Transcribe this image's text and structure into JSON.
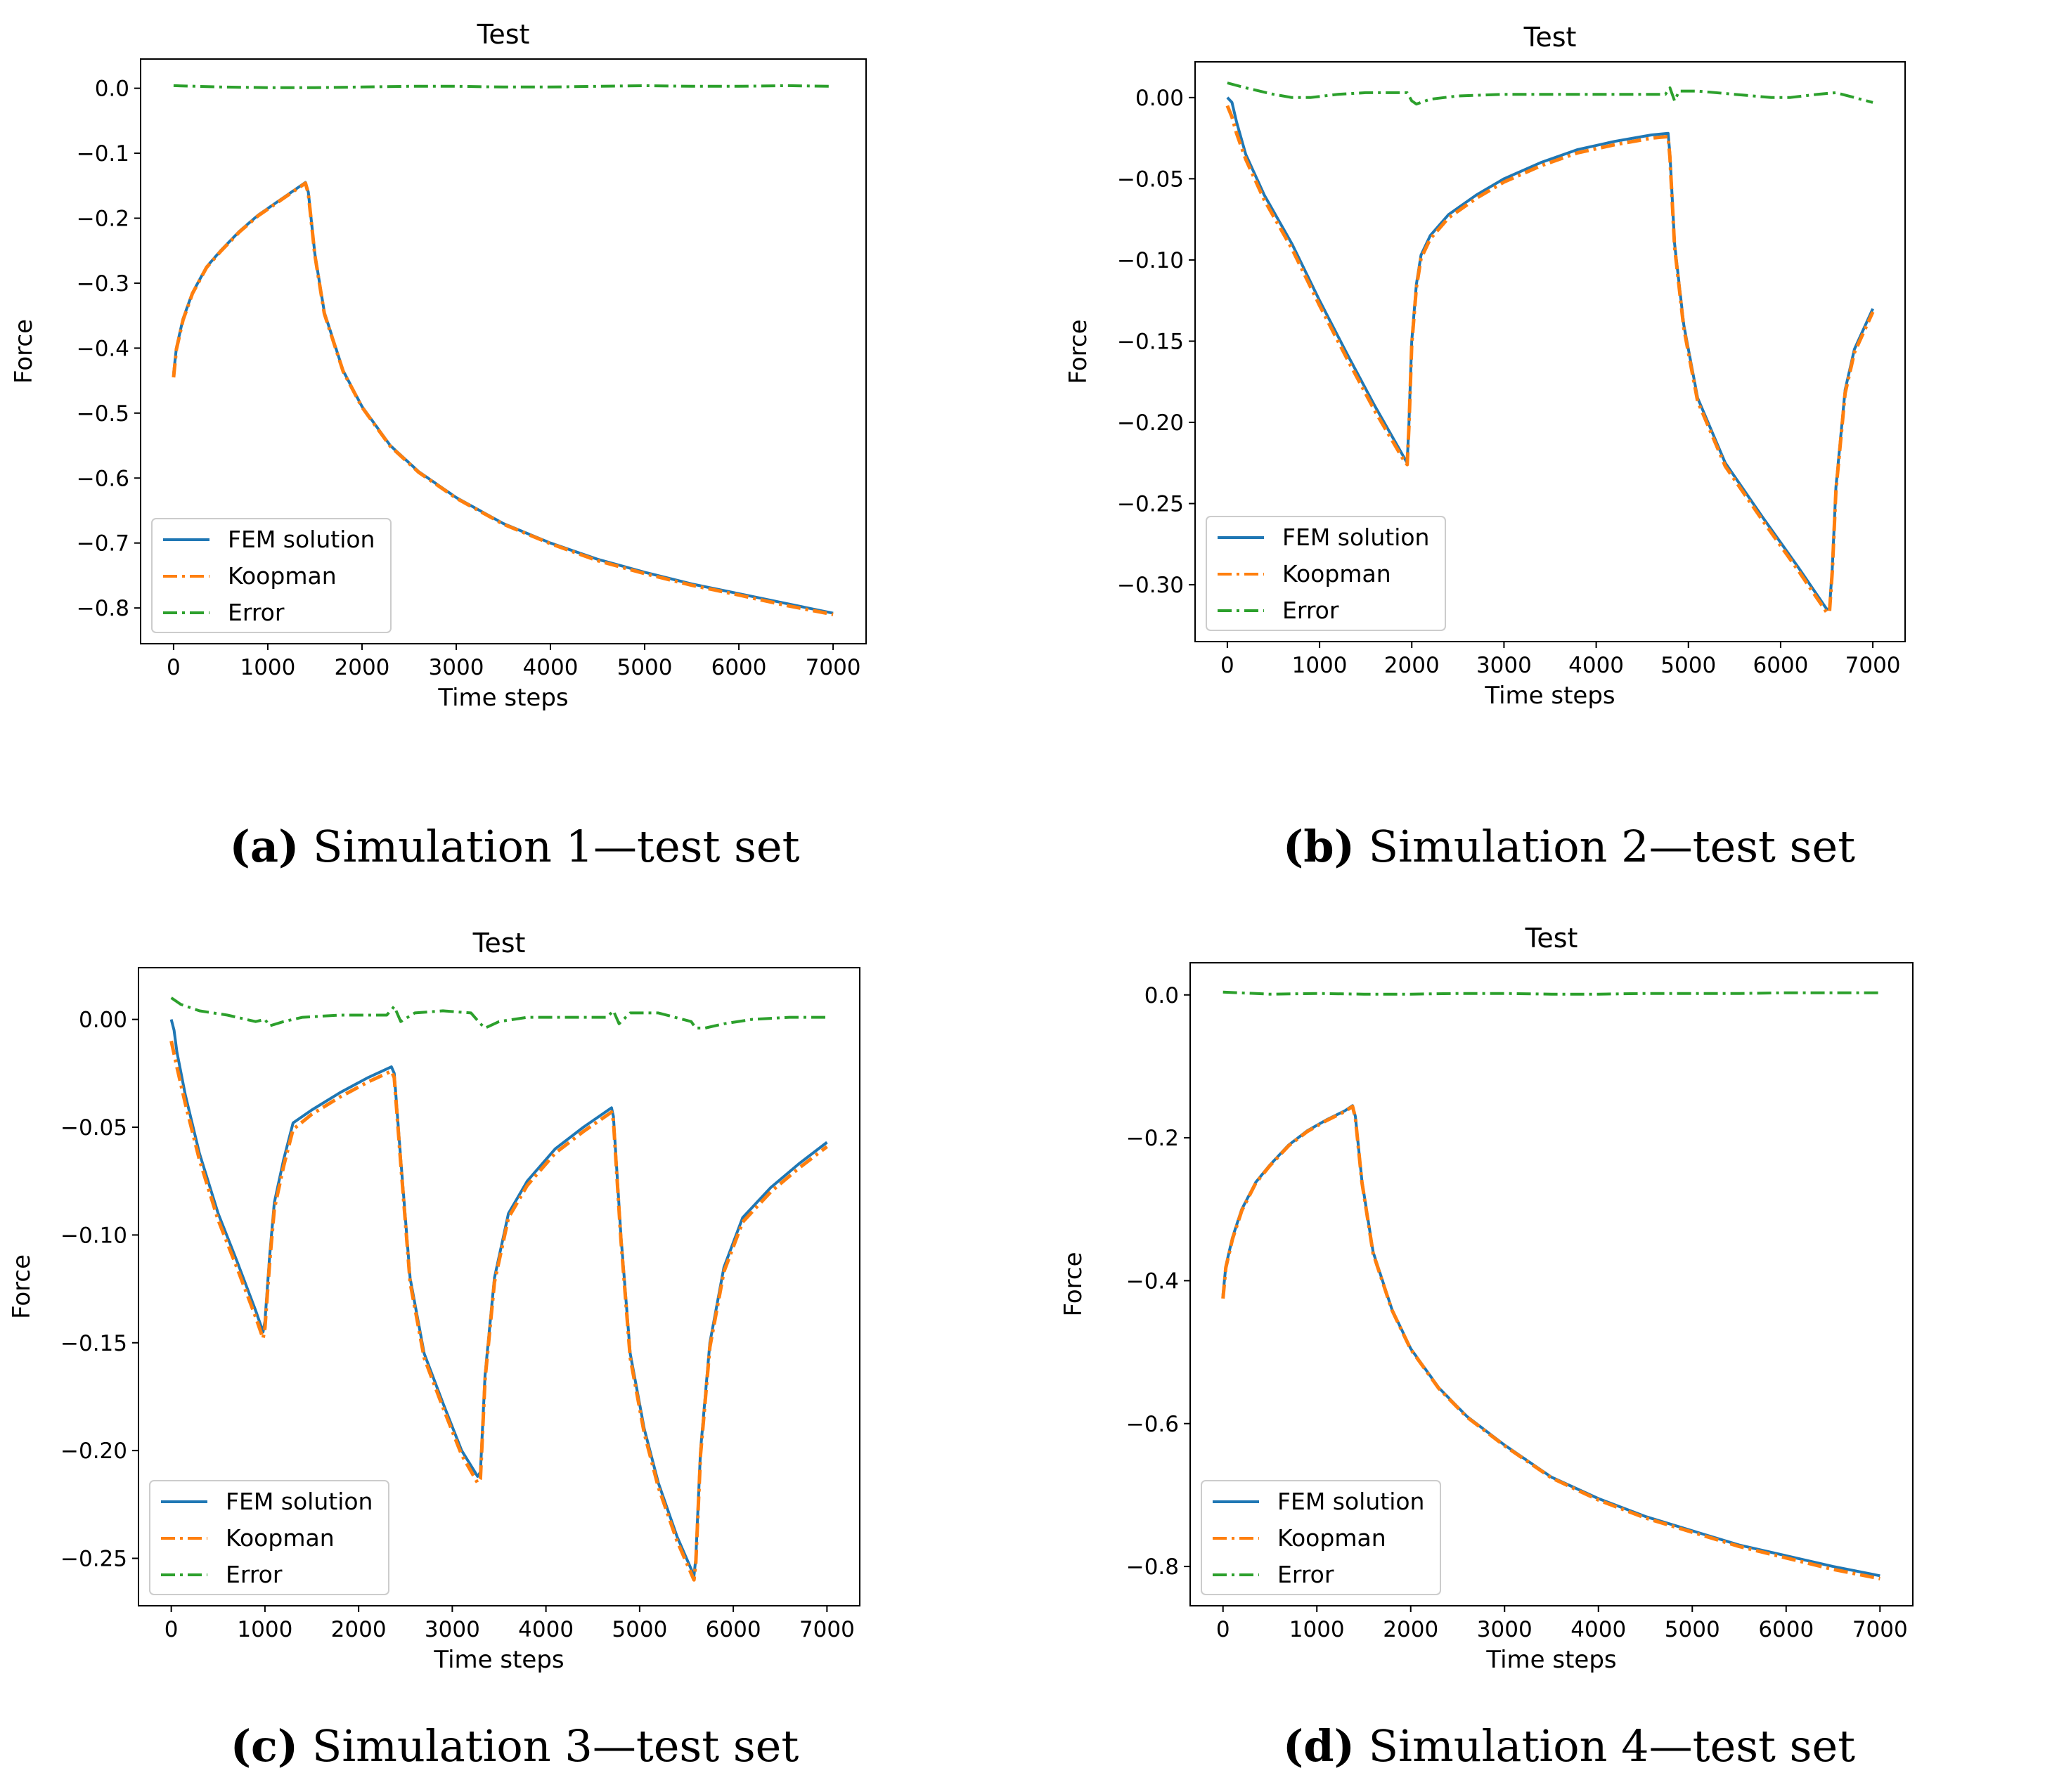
{
  "colors": {
    "fem": "#1f77b4",
    "koopman": "#ff7f0e",
    "error": "#2ca02c"
  },
  "chart_data": [
    {
      "type": "line",
      "title": "Test",
      "xlabel": "Time steps",
      "ylabel": "Force",
      "xlim": [
        -350,
        7350
      ],
      "ylim": [
        -0.855,
        0.045
      ],
      "xticks": [
        0,
        1000,
        2000,
        3000,
        4000,
        5000,
        6000,
        7000
      ],
      "xtick_labels": [
        "0",
        "1000",
        "2000",
        "3000",
        "4000",
        "5000",
        "6000",
        "7000"
      ],
      "yticks": [
        0.0,
        -0.1,
        -0.2,
        -0.3,
        -0.4,
        -0.5,
        -0.6,
        -0.7,
        -0.8
      ],
      "ytick_labels": [
        "0.0",
        "−0.1",
        "−0.2",
        "−0.3",
        "−0.4",
        "−0.5",
        "−0.6",
        "−0.7",
        "−0.8"
      ],
      "legend_position": "lower-left",
      "caption_letter": "(a)",
      "caption_text": " Simulation 1—test set",
      "series": [
        {
          "name": "FEM solution",
          "style": "solid",
          "key": "fem",
          "x": [
            0,
            30,
            100,
            200,
            350,
            500,
            700,
            900,
            1100,
            1300,
            1400,
            1430,
            1500,
            1600,
            1800,
            2000,
            2300,
            2600,
            3000,
            3500,
            4000,
            4500,
            5000,
            5500,
            6000,
            6500,
            7000
          ],
          "values": [
            -0.44,
            -0.4,
            -0.355,
            -0.315,
            -0.275,
            -0.25,
            -0.22,
            -0.195,
            -0.175,
            -0.155,
            -0.145,
            -0.16,
            -0.255,
            -0.345,
            -0.435,
            -0.49,
            -0.55,
            -0.59,
            -0.63,
            -0.67,
            -0.7,
            -0.725,
            -0.745,
            -0.763,
            -0.778,
            -0.793,
            -0.808
          ]
        },
        {
          "name": "Koopman",
          "style": "dashdot",
          "key": "koopman",
          "x": [
            0,
            30,
            100,
            200,
            350,
            500,
            700,
            900,
            1100,
            1300,
            1400,
            1430,
            1500,
            1600,
            1800,
            2000,
            2300,
            2600,
            3000,
            3500,
            4000,
            4500,
            5000,
            5500,
            6000,
            6500,
            7000
          ],
          "values": [
            -0.445,
            -0.402,
            -0.357,
            -0.316,
            -0.276,
            -0.251,
            -0.221,
            -0.196,
            -0.176,
            -0.156,
            -0.146,
            -0.162,
            -0.257,
            -0.347,
            -0.436,
            -0.491,
            -0.551,
            -0.591,
            -0.631,
            -0.671,
            -0.701,
            -0.727,
            -0.747,
            -0.765,
            -0.78,
            -0.796,
            -0.81
          ]
        },
        {
          "name": "Error",
          "style": "dashdot",
          "key": "error",
          "x": [
            0,
            500,
            1000,
            1500,
            2000,
            2500,
            3000,
            3500,
            4000,
            4500,
            5000,
            5500,
            6000,
            6500,
            7000
          ],
          "values": [
            0.004,
            0.002,
            0.001,
            0.001,
            0.002,
            0.003,
            0.003,
            0.002,
            0.002,
            0.003,
            0.004,
            0.003,
            0.003,
            0.004,
            0.003
          ]
        }
      ]
    },
    {
      "type": "line",
      "title": "Test",
      "xlabel": "Time steps",
      "ylabel": "Force",
      "xlim": [
        -350,
        7350
      ],
      "ylim": [
        -0.335,
        0.022
      ],
      "xticks": [
        0,
        1000,
        2000,
        3000,
        4000,
        5000,
        6000,
        7000
      ],
      "xtick_labels": [
        "0",
        "1000",
        "2000",
        "3000",
        "4000",
        "5000",
        "6000",
        "7000"
      ],
      "yticks": [
        0.0,
        -0.05,
        -0.1,
        -0.15,
        -0.2,
        -0.25,
        -0.3
      ],
      "ytick_labels": [
        "0.00",
        "−0.05",
        "−0.10",
        "−0.15",
        "−0.20",
        "−0.25",
        "−0.30"
      ],
      "legend_position": "lower-left",
      "caption_letter": "(b)",
      "caption_text": " Simulation 2—test set",
      "series": [
        {
          "name": "FEM solution",
          "style": "solid",
          "key": "fem",
          "x": [
            0,
            50,
            100,
            200,
            400,
            700,
            1000,
            1300,
            1600,
            1900,
            1950,
            1970,
            2000,
            2050,
            2100,
            2200,
            2400,
            2700,
            3000,
            3400,
            3800,
            4200,
            4600,
            4780,
            4800,
            4850,
            4950,
            5100,
            5400,
            5800,
            6200,
            6500,
            6530,
            6560,
            6600,
            6700,
            6800,
            7000
          ],
          "values": [
            0.0,
            -0.003,
            -0.015,
            -0.035,
            -0.06,
            -0.09,
            -0.125,
            -0.158,
            -0.19,
            -0.22,
            -0.225,
            -0.2,
            -0.15,
            -0.115,
            -0.097,
            -0.085,
            -0.072,
            -0.06,
            -0.05,
            -0.04,
            -0.032,
            -0.027,
            -0.023,
            -0.022,
            -0.035,
            -0.09,
            -0.14,
            -0.185,
            -0.225,
            -0.258,
            -0.29,
            -0.315,
            -0.315,
            -0.29,
            -0.24,
            -0.18,
            -0.155,
            -0.13
          ]
        },
        {
          "name": "Koopman",
          "style": "dashdot",
          "key": "koopman",
          "x": [
            0,
            50,
            100,
            200,
            400,
            700,
            1000,
            1300,
            1600,
            1900,
            1950,
            1970,
            2000,
            2050,
            2100,
            2200,
            2400,
            2700,
            3000,
            3400,
            3800,
            4200,
            4600,
            4780,
            4800,
            4850,
            4950,
            5100,
            5400,
            5800,
            6200,
            6500,
            6530,
            6560,
            6600,
            6700,
            6800,
            7000
          ],
          "values": [
            -0.005,
            -0.012,
            -0.022,
            -0.038,
            -0.063,
            -0.093,
            -0.128,
            -0.161,
            -0.193,
            -0.222,
            -0.226,
            -0.202,
            -0.152,
            -0.117,
            -0.099,
            -0.087,
            -0.074,
            -0.062,
            -0.052,
            -0.042,
            -0.034,
            -0.029,
            -0.025,
            -0.024,
            -0.037,
            -0.092,
            -0.142,
            -0.187,
            -0.227,
            -0.26,
            -0.292,
            -0.317,
            -0.317,
            -0.292,
            -0.242,
            -0.182,
            -0.157,
            -0.132
          ]
        },
        {
          "name": "Error",
          "style": "dashdot",
          "key": "error",
          "x": [
            0,
            200,
            500,
            700,
            900,
            1200,
            1500,
            1800,
            1950,
            2000,
            2050,
            2200,
            2500,
            3000,
            3500,
            4000,
            4500,
            4750,
            4800,
            4850,
            4900,
            5100,
            5500,
            5900,
            6100,
            6400,
            6600,
            6800,
            7000
          ],
          "values": [
            0.009,
            0.006,
            0.002,
            0.0,
            0.0,
            0.002,
            0.003,
            0.003,
            0.003,
            -0.002,
            -0.004,
            -0.001,
            0.001,
            0.002,
            0.002,
            0.002,
            0.002,
            0.002,
            0.006,
            -0.002,
            0.004,
            0.004,
            0.002,
            0.0,
            0.0,
            0.002,
            0.003,
            0.0,
            -0.003
          ]
        }
      ]
    },
    {
      "type": "line",
      "title": "Test",
      "xlabel": "Time steps",
      "ylabel": "Force",
      "xlim": [
        -350,
        7350
      ],
      "ylim": [
        -0.272,
        0.024
      ],
      "xticks": [
        0,
        1000,
        2000,
        3000,
        4000,
        5000,
        6000,
        7000
      ],
      "xtick_labels": [
        "0",
        "1000",
        "2000",
        "3000",
        "4000",
        "5000",
        "6000",
        "7000"
      ],
      "yticks": [
        0.0,
        -0.05,
        -0.1,
        -0.15,
        -0.2,
        -0.25
      ],
      "ytick_labels": [
        "0.00",
        "−0.05",
        "−0.10",
        "−0.15",
        "−0.20",
        "−0.25"
      ],
      "legend_position": "lower-left",
      "caption_letter": "(c)",
      "caption_text": " Simulation 3—test set",
      "series": [
        {
          "name": "FEM solution",
          "style": "solid",
          "key": "fem",
          "x": [
            0,
            30,
            60,
            150,
            300,
            500,
            700,
            900,
            980,
            1000,
            1050,
            1100,
            1200,
            1300,
            1500,
            1800,
            2100,
            2350,
            2380,
            2450,
            2550,
            2700,
            2900,
            3100,
            3270,
            3300,
            3350,
            3450,
            3600,
            3800,
            4100,
            4400,
            4700,
            4720,
            4800,
            4900,
            5050,
            5200,
            5400,
            5580,
            5600,
            5650,
            5750,
            5900,
            6100,
            6400,
            6700,
            7000
          ],
          "values": [
            0.0,
            -0.005,
            -0.015,
            -0.035,
            -0.062,
            -0.09,
            -0.112,
            -0.135,
            -0.145,
            -0.14,
            -0.11,
            -0.085,
            -0.065,
            -0.048,
            -0.042,
            -0.034,
            -0.027,
            -0.022,
            -0.025,
            -0.065,
            -0.12,
            -0.155,
            -0.178,
            -0.2,
            -0.212,
            -0.21,
            -0.165,
            -0.12,
            -0.09,
            -0.075,
            -0.06,
            -0.05,
            -0.041,
            -0.045,
            -0.1,
            -0.155,
            -0.19,
            -0.215,
            -0.24,
            -0.258,
            -0.25,
            -0.2,
            -0.15,
            -0.115,
            -0.092,
            -0.078,
            -0.067,
            -0.057
          ]
        },
        {
          "name": "Koopman",
          "style": "dashdot",
          "key": "koopman",
          "x": [
            0,
            30,
            60,
            150,
            300,
            500,
            700,
            900,
            980,
            1000,
            1050,
            1100,
            1200,
            1300,
            1500,
            1800,
            2100,
            2350,
            2380,
            2450,
            2550,
            2700,
            2900,
            3100,
            3270,
            3300,
            3350,
            3450,
            3600,
            3800,
            4100,
            4400,
            4700,
            4720,
            4800,
            4900,
            5050,
            5200,
            5400,
            5580,
            5600,
            5650,
            5750,
            5900,
            6100,
            6400,
            6700,
            7000
          ],
          "values": [
            -0.01,
            -0.016,
            -0.022,
            -0.039,
            -0.065,
            -0.093,
            -0.115,
            -0.138,
            -0.148,
            -0.143,
            -0.113,
            -0.088,
            -0.068,
            -0.051,
            -0.044,
            -0.036,
            -0.029,
            -0.024,
            -0.027,
            -0.067,
            -0.122,
            -0.157,
            -0.18,
            -0.202,
            -0.215,
            -0.213,
            -0.167,
            -0.122,
            -0.092,
            -0.077,
            -0.062,
            -0.052,
            -0.043,
            -0.047,
            -0.102,
            -0.157,
            -0.192,
            -0.217,
            -0.242,
            -0.26,
            -0.252,
            -0.202,
            -0.152,
            -0.117,
            -0.094,
            -0.08,
            -0.069,
            -0.059
          ]
        },
        {
          "name": "Error",
          "style": "dashdot",
          "key": "error",
          "x": [
            0,
            100,
            300,
            600,
            900,
            1000,
            1050,
            1200,
            1400,
            1800,
            2300,
            2380,
            2450,
            2600,
            2900,
            3200,
            3300,
            3350,
            3500,
            3800,
            4200,
            4650,
            4720,
            4780,
            4900,
            5200,
            5550,
            5600,
            5700,
            5900,
            6200,
            6600,
            7000
          ],
          "values": [
            0.01,
            0.007,
            0.004,
            0.002,
            -0.001,
            0.0,
            -0.003,
            -0.001,
            0.001,
            0.002,
            0.002,
            0.006,
            -0.001,
            0.003,
            0.004,
            0.003,
            -0.002,
            -0.004,
            -0.001,
            0.001,
            0.001,
            0.001,
            0.004,
            -0.002,
            0.003,
            0.003,
            -0.001,
            -0.004,
            -0.004,
            -0.002,
            0.0,
            0.001,
            0.001
          ]
        }
      ]
    },
    {
      "type": "line",
      "title": "Test",
      "xlabel": "Time steps",
      "ylabel": "Force",
      "xlim": [
        -350,
        7350
      ],
      "ylim": [
        -0.855,
        0.045
      ],
      "xticks": [
        0,
        1000,
        2000,
        3000,
        4000,
        5000,
        6000,
        7000
      ],
      "xtick_labels": [
        "0",
        "1000",
        "2000",
        "3000",
        "4000",
        "5000",
        "6000",
        "7000"
      ],
      "yticks": [
        0.0,
        -0.2,
        -0.4,
        -0.6,
        -0.8
      ],
      "ytick_labels": [
        "0.0",
        "−0.2",
        "−0.4",
        "−0.6",
        "−0.8"
      ],
      "legend_position": "lower-left",
      "caption_letter": "(d)",
      "caption_text": " Simulation 4—test set",
      "series": [
        {
          "name": "FEM solution",
          "style": "solid",
          "key": "fem",
          "x": [
            0,
            30,
            100,
            200,
            350,
            500,
            700,
            900,
            1100,
            1300,
            1380,
            1410,
            1480,
            1600,
            1800,
            2000,
            2300,
            2600,
            3000,
            3500,
            4000,
            4500,
            5000,
            5500,
            6000,
            6500,
            7000
          ],
          "values": [
            -0.42,
            -0.38,
            -0.34,
            -0.3,
            -0.262,
            -0.238,
            -0.21,
            -0.19,
            -0.175,
            -0.162,
            -0.155,
            -0.17,
            -0.26,
            -0.36,
            -0.44,
            -0.495,
            -0.55,
            -0.59,
            -0.63,
            -0.675,
            -0.705,
            -0.73,
            -0.75,
            -0.77,
            -0.785,
            -0.8,
            -0.813
          ]
        },
        {
          "name": "Koopman",
          "style": "dashdot",
          "key": "koopman",
          "x": [
            0,
            30,
            100,
            200,
            350,
            500,
            700,
            900,
            1100,
            1300,
            1380,
            1410,
            1480,
            1600,
            1800,
            2000,
            2300,
            2600,
            3000,
            3500,
            4000,
            4500,
            5000,
            5500,
            6000,
            6500,
            7000
          ],
          "values": [
            -0.425,
            -0.382,
            -0.342,
            -0.302,
            -0.263,
            -0.239,
            -0.211,
            -0.191,
            -0.176,
            -0.163,
            -0.156,
            -0.172,
            -0.262,
            -0.362,
            -0.441,
            -0.496,
            -0.551,
            -0.591,
            -0.631,
            -0.676,
            -0.707,
            -0.732,
            -0.752,
            -0.772,
            -0.788,
            -0.804,
            -0.817
          ]
        },
        {
          "name": "Error",
          "style": "dashdot",
          "key": "error",
          "x": [
            0,
            500,
            1000,
            1500,
            2000,
            2500,
            3000,
            3500,
            4000,
            4500,
            5000,
            5500,
            6000,
            6500,
            7000
          ],
          "values": [
            0.004,
            0.001,
            0.002,
            0.001,
            0.001,
            0.002,
            0.002,
            0.001,
            0.001,
            0.002,
            0.002,
            0.002,
            0.003,
            0.003,
            0.003
          ]
        }
      ]
    }
  ]
}
